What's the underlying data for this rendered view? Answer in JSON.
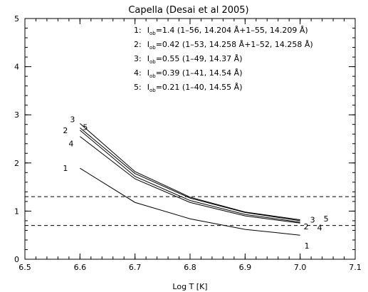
{
  "chart_data": {
    "type": "line",
    "title": "Capella (Desai et al 2005)",
    "xlabel": "Log T [K]",
    "ylabel": "",
    "xlim": [
      6.5,
      7.1
    ],
    "ylim": [
      0,
      5
    ],
    "xticks": [
      "6.5",
      "6.6",
      "6.7",
      "6.8",
      "6.9",
      "7.0",
      "7.1"
    ],
    "yticks": [
      "0",
      "1",
      "2",
      "3",
      "4",
      "5"
    ],
    "x": [
      6.6,
      6.7,
      6.8,
      6.9,
      7.0
    ],
    "series": [
      {
        "label": "1",
        "values": [
          1.89,
          1.18,
          0.84,
          0.62,
          0.5
        ]
      },
      {
        "label": "2",
        "values": [
          2.68,
          1.72,
          1.22,
          0.93,
          0.77
        ]
      },
      {
        "label": "3",
        "values": [
          2.82,
          1.82,
          1.29,
          0.98,
          0.82
        ]
      },
      {
        "label": "4",
        "values": [
          2.55,
          1.67,
          1.18,
          0.9,
          0.75
        ]
      },
      {
        "label": "5",
        "values": [
          2.73,
          1.78,
          1.27,
          0.97,
          0.8
        ]
      }
    ],
    "hlines": [
      1.3,
      0.7
    ],
    "legend": {
      "placement": "top-right",
      "entries": [
        {
          "num": "1:",
          "sym": "I",
          "sub": "ob",
          "text": "=1.4 (1–56, 14.204 Å+1–55, 14.209 Å)"
        },
        {
          "num": "2:",
          "sym": "I",
          "sub": "ob",
          "text": "=0.42 (1–53, 14.258 Å+1–52, 14.258 Å)"
        },
        {
          "num": "3:",
          "sym": "I",
          "sub": "ob",
          "text": "=0.55 (1–49, 14.37 Å)"
        },
        {
          "num": "4:",
          "sym": "I",
          "sub": "ob",
          "text": "=0.39 (1–41, 14.54 Å)"
        },
        {
          "num": "5:",
          "sym": "I",
          "sub": "ob",
          "text": "=0.21 (1–40, 14.55 Å)"
        }
      ]
    }
  }
}
